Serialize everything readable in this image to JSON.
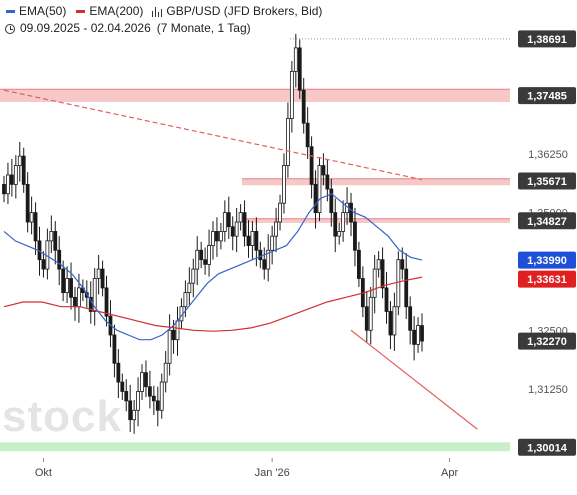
{
  "legend": {
    "ema50_label": "EMA(50)",
    "ema200_label": "EMA(200)",
    "instrument_label": "GBP/USD (JFD Brokers, Bid)",
    "date_range": "09.09.2025 - 02.04.2026",
    "range_detail": "(7 Monate, 1 Tag)"
  },
  "watermark": "stock",
  "colors": {
    "candle": "#1a1a1a",
    "ema50": "#3a62c9",
    "ema200": "#d03030",
    "zone_red": "#f7c8c8",
    "zone_red_line": "#e88080",
    "zone_green": "#c8f0c8",
    "price_tag_dark": "#3a3a3a",
    "price_tag_blue": "#1e4fd8",
    "price_tag_red": "#e02020",
    "trend_line": "#e06060"
  },
  "chart_data": {
    "type": "candlestick",
    "title": "GBP/USD (JFD Brokers, Bid)",
    "period": "09.09.2025 - 02.04.2026",
    "interval": "1 Tag",
    "x_tick_labels": [
      "Okt",
      "Jan '26",
      "Apr"
    ],
    "y_tick_labels": [
      "1,36250",
      "1,35000",
      "1,32500",
      "1,31250"
    ],
    "y_ticks": [
      1.3625,
      1.35,
      1.325,
      1.3125
    ],
    "ylim": [
      1.2985,
      1.3905
    ],
    "price_tags": [
      {
        "label": "1,38691",
        "value": 1.38691,
        "kind": "level"
      },
      {
        "label": "1,37485",
        "value": 1.37485,
        "kind": "level"
      },
      {
        "label": "1,35671",
        "value": 1.35671,
        "kind": "level"
      },
      {
        "label": "1,34827",
        "value": 1.34827,
        "kind": "level"
      },
      {
        "label": "1,33990",
        "value": 1.3399,
        "kind": "ema50"
      },
      {
        "label": "1,33631",
        "value": 1.33631,
        "kind": "ema200"
      },
      {
        "label": "1,32270",
        "value": 1.3227,
        "kind": "last"
      },
      {
        "label": "1,30014",
        "value": 1.30014,
        "kind": "level"
      }
    ],
    "resistance_zones": [
      {
        "low": 1.3735,
        "high": 1.3762
      },
      {
        "low": 1.3558,
        "high": 1.3572
      },
      {
        "low": 1.3478,
        "high": 1.3487
      }
    ],
    "support_zones": [
      {
        "low": 1.2993,
        "high": 1.3012
      }
    ],
    "close_series": [
      1.354,
      1.358,
      1.356,
      1.36,
      1.362,
      1.356,
      1.348,
      1.35,
      1.344,
      1.34,
      1.338,
      1.344,
      1.346,
      1.342,
      1.338,
      1.333,
      1.336,
      1.332,
      1.33,
      1.334,
      1.333,
      1.332,
      1.329,
      1.336,
      1.338,
      1.334,
      1.328,
      1.324,
      1.318,
      1.314,
      1.312,
      1.31,
      1.306,
      1.308,
      1.312,
      1.316,
      1.313,
      1.311,
      1.31,
      1.308,
      1.314,
      1.318,
      1.325,
      1.323,
      1.327,
      1.33,
      1.333,
      1.335,
      1.338,
      1.342,
      1.34,
      1.339,
      1.343,
      1.346,
      1.344,
      1.346,
      1.35,
      1.347,
      1.345,
      1.348,
      1.35,
      1.345,
      1.343,
      1.346,
      1.342,
      1.34,
      1.338,
      1.342,
      1.345,
      1.348,
      1.352,
      1.36,
      1.37,
      1.38,
      1.385,
      1.376,
      1.369,
      1.364,
      1.356,
      1.35,
      1.36,
      1.358,
      1.355,
      1.35,
      1.345,
      1.346,
      1.35,
      1.352,
      1.348,
      1.342,
      1.336,
      1.33,
      1.325,
      1.332,
      1.338,
      1.34,
      1.334,
      1.329,
      1.324,
      1.33,
      1.34,
      1.338,
      1.33,
      1.325,
      1.322,
      1.326,
      1.3227
    ],
    "ema50_series": [
      1.346,
      1.344,
      1.343,
      1.342,
      1.3405,
      1.339,
      1.337,
      1.334,
      1.33,
      1.327,
      1.325,
      1.324,
      1.323,
      1.323,
      1.324,
      1.326,
      1.329,
      1.332,
      1.335,
      1.337,
      1.338,
      1.339,
      1.34,
      1.341,
      1.342,
      1.343,
      1.346,
      1.35,
      1.353,
      1.354,
      1.352,
      1.35,
      1.349,
      1.347,
      1.345,
      1.342,
      1.3405,
      1.3399
    ],
    "ema200_series": [
      1.33,
      1.331,
      1.331,
      1.33,
      1.33,
      1.329,
      1.328,
      1.327,
      1.326,
      1.3255,
      1.325,
      1.3248,
      1.325,
      1.3255,
      1.3265,
      1.328,
      1.3295,
      1.331,
      1.332,
      1.333,
      1.3345,
      1.3355,
      1.3363
    ],
    "trend_lines": [
      {
        "style": "dashed",
        "from_index": 0,
        "from_value": 1.376,
        "to_index": 106,
        "to_value": 1.357
      },
      {
        "style": "solid",
        "from_index": 88,
        "from_value": 1.325,
        "to_index": 120,
        "to_value": 1.304
      }
    ]
  }
}
